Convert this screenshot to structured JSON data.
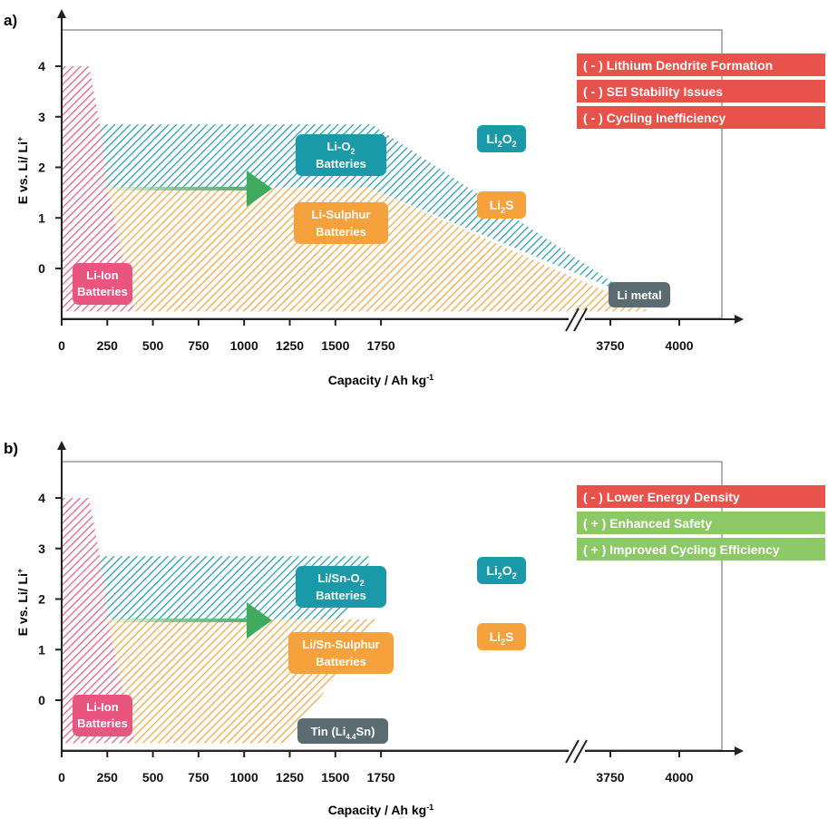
{
  "chart_data": [
    {
      "type": "area",
      "panel": "a)",
      "xlabel": "Capacity / Ah kg",
      "xlabel_sup": "-1",
      "ylabel": "E vs. Li/ Li",
      "ylabel_sup": "+",
      "x_ticks": [
        "0",
        "250",
        "500",
        "750",
        "1000",
        "1250",
        "1500",
        "1750",
        "3750",
        "4000"
      ],
      "y_ticks": [
        "4",
        "3",
        "2",
        "1",
        "0"
      ],
      "x_axis_break": "between 1750 and 3750",
      "regions": [
        {
          "name": "Li-Ion Batteries",
          "color": "#e8567f",
          "polygon": [
            [
              0,
              4
            ],
            [
              150,
              4
            ],
            [
              400,
              -0.85
            ],
            [
              0,
              -0.85
            ]
          ]
        },
        {
          "name": "Li-O2 Batteries",
          "color": "#1a9aa8",
          "polygon": [
            [
              210,
              2.85
            ],
            [
              1700,
              2.85
            ],
            [
              3850,
              -0.6
            ],
            [
              1680,
              1.6
            ],
            [
              250,
              1.6
            ]
          ]
        },
        {
          "name": "Li-Sulphur Batteries",
          "color": "#f6a23c",
          "polygon": [
            [
              250,
              1.6
            ],
            [
              1680,
              1.6
            ],
            [
              3900,
              -0.85
            ],
            [
              400,
              -0.85
            ]
          ]
        }
      ],
      "labels": {
        "li_ion": [
          "Li-Ion",
          "Batteries"
        ],
        "li_o2": [
          "Li-O",
          "2",
          "Batteries"
        ],
        "li_s": [
          "Li-Sulphur",
          "Batteries"
        ],
        "li2o2": [
          "Li",
          "2",
          "O",
          "2"
        ],
        "li2s": [
          "Li",
          "2",
          "S"
        ],
        "anode": "Li metal"
      },
      "legend": [
        {
          "text": "( - ) Lithium Dendrite Formation",
          "color": "#e8524a"
        },
        {
          "text": "( - ) SEI Stability Issues",
          "color": "#e8524a"
        },
        {
          "text": "( - ) Cycling Inefficiency",
          "color": "#e8524a"
        }
      ],
      "legend_position": "top-right"
    },
    {
      "type": "area",
      "panel": "b)",
      "xlabel": "Capacity / Ah kg",
      "xlabel_sup": "-1",
      "ylabel": "E vs. Li/ Li",
      "ylabel_sup": "+",
      "x_ticks": [
        "0",
        "250",
        "500",
        "750",
        "1000",
        "1250",
        "1500",
        "1750",
        "3750",
        "4000"
      ],
      "y_ticks": [
        "4",
        "3",
        "2",
        "1",
        "0"
      ],
      "x_axis_break": "between 1750 and 3750",
      "regions": [
        {
          "name": "Li-Ion Batteries",
          "color": "#e8567f",
          "polygon": [
            [
              0,
              4
            ],
            [
              150,
              4
            ],
            [
              400,
              -0.85
            ],
            [
              0,
              -0.85
            ]
          ]
        },
        {
          "name": "Li/Sn-O2 Batteries",
          "color": "#1a9aa8",
          "polygon": [
            [
              210,
              2.85
            ],
            [
              1700,
              2.85
            ],
            [
              1540,
              1.6
            ],
            [
              250,
              1.6
            ]
          ]
        },
        {
          "name": "Li/Sn-Sulphur Batteries",
          "color": "#f6a23c",
          "polygon": [
            [
              250,
              1.6
            ],
            [
              1720,
              1.6
            ],
            [
              1240,
              -0.85
            ],
            [
              400,
              -0.85
            ]
          ]
        }
      ],
      "labels": {
        "li_ion": [
          "Li-Ion",
          "Batteries"
        ],
        "li_o2": [
          "Li/Sn-O",
          "2",
          "Batteries"
        ],
        "li_s": [
          "Li/Sn-Sulphur",
          "Batteries"
        ],
        "li2o2": [
          "Li",
          "2",
          "O",
          "2"
        ],
        "li2s": [
          "Li",
          "2",
          "S"
        ],
        "anode_parts": [
          "Tin (Li",
          "4.4",
          "Sn)"
        ]
      },
      "legend": [
        {
          "text": "( - ) Lower Energy Density",
          "color": "#e8524a"
        },
        {
          "text": "( + ) Enhanced Safety",
          "color": "#8cc866"
        },
        {
          "text": "( + ) Improved Cycling Efficiency",
          "color": "#8cc866"
        }
      ],
      "legend_position": "top-right"
    }
  ]
}
